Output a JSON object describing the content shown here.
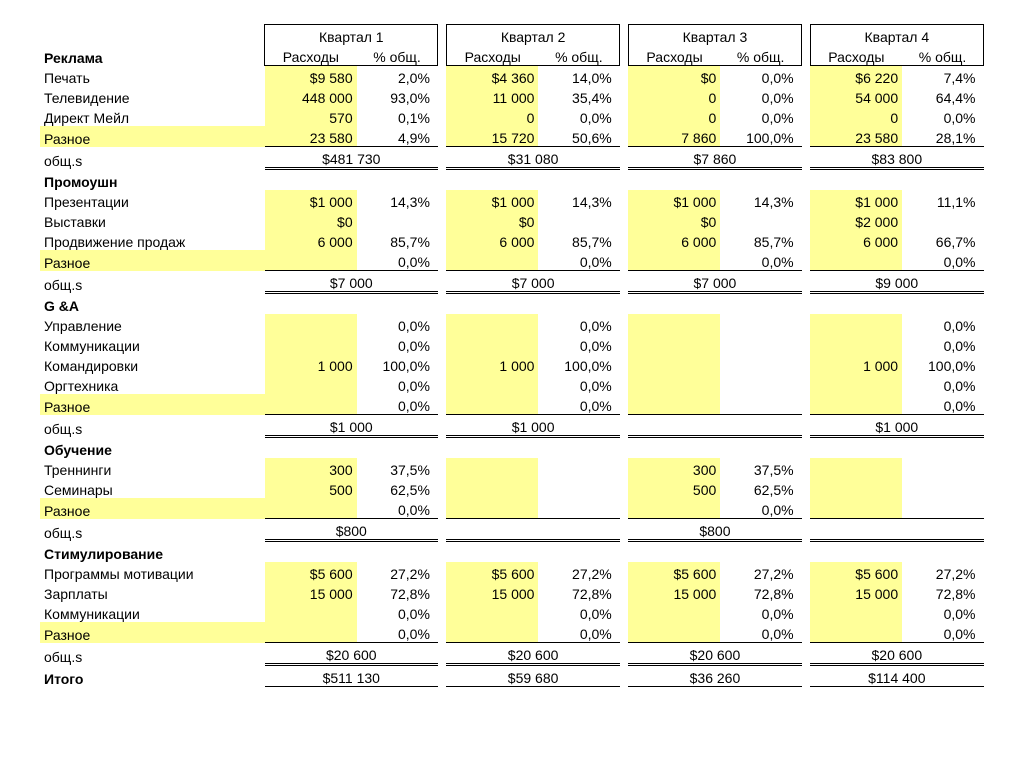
{
  "colors": {
    "highlight": "#ffff99",
    "text": "#000000",
    "bg": "#ffffff"
  },
  "header": {
    "quarters": [
      "Квартал 1",
      "Квартал 2",
      "Квартал 3",
      "Квартал 4"
    ],
    "sub_amt": "Расходы",
    "sub_pct": "% общ."
  },
  "labels": {
    "subtotal": "общ.s",
    "grandtotal": "Итого"
  },
  "sections": [
    {
      "title": "Реклама",
      "rows": [
        {
          "label": "Печать",
          "hl_label": false,
          "cells": [
            {
              "amt": "$9 580",
              "pct": "2,0%",
              "hl": true
            },
            {
              "amt": "$4 360",
              "pct": "14,0%",
              "hl": true
            },
            {
              "amt": "$0",
              "pct": "0,0%",
              "hl": true
            },
            {
              "amt": "$6 220",
              "pct": "7,4%",
              "hl": true
            }
          ]
        },
        {
          "label": "Телевидение",
          "hl_label": false,
          "cells": [
            {
              "amt": "448 000",
              "pct": "93,0%",
              "hl": true
            },
            {
              "amt": "11 000",
              "pct": "35,4%",
              "hl": true
            },
            {
              "amt": "0",
              "pct": "0,0%",
              "hl": true
            },
            {
              "amt": "54 000",
              "pct": "64,4%",
              "hl": true
            }
          ]
        },
        {
          "label": "Директ Мейл",
          "hl_label": false,
          "cells": [
            {
              "amt": "570",
              "pct": "0,1%",
              "hl": true
            },
            {
              "amt": "0",
              "pct": "0,0%",
              "hl": true
            },
            {
              "amt": "0",
              "pct": "0,0%",
              "hl": true
            },
            {
              "amt": "0",
              "pct": "0,0%",
              "hl": true
            }
          ]
        },
        {
          "label": "Разное",
          "hl_label": true,
          "cells": [
            {
              "amt": "23 580",
              "pct": "4,9%",
              "hl": true
            },
            {
              "amt": "15 720",
              "pct": "50,6%",
              "hl": true
            },
            {
              "amt": "7 860",
              "pct": "100,0%",
              "hl": true
            },
            {
              "amt": "23 580",
              "pct": "28,1%",
              "hl": true
            }
          ]
        }
      ],
      "subtotal": [
        "$481 730",
        "$31 080",
        "$7 860",
        "$83 800"
      ]
    },
    {
      "title": "Промоушн",
      "rows": [
        {
          "label": "Презентации",
          "hl_label": false,
          "cells": [
            {
              "amt": "$1 000",
              "pct": "14,3%",
              "hl": true
            },
            {
              "amt": "$1 000",
              "pct": "14,3%",
              "hl": true
            },
            {
              "amt": "$1 000",
              "pct": "14,3%",
              "hl": true
            },
            {
              "amt": "$1 000",
              "pct": "11,1%",
              "hl": true
            }
          ]
        },
        {
          "label": "Выставки",
          "hl_label": false,
          "cells": [
            {
              "amt": "$0",
              "pct": "",
              "hl": true
            },
            {
              "amt": "$0",
              "pct": "",
              "hl": true
            },
            {
              "amt": "$0",
              "pct": "",
              "hl": true
            },
            {
              "amt": "$2 000",
              "pct": "",
              "hl": true
            }
          ]
        },
        {
          "label": "Продвижение продаж",
          "hl_label": false,
          "cells": [
            {
              "amt": "6 000",
              "pct": "85,7%",
              "hl": true
            },
            {
              "amt": "6 000",
              "pct": "85,7%",
              "hl": true
            },
            {
              "amt": "6 000",
              "pct": "85,7%",
              "hl": true
            },
            {
              "amt": "6 000",
              "pct": "66,7%",
              "hl": true
            }
          ]
        },
        {
          "label": "Разное",
          "hl_label": true,
          "cells": [
            {
              "amt": "",
              "pct": "0,0%",
              "hl": true
            },
            {
              "amt": "",
              "pct": "0,0%",
              "hl": true
            },
            {
              "amt": "",
              "pct": "0,0%",
              "hl": true
            },
            {
              "amt": "",
              "pct": "0,0%",
              "hl": true
            }
          ]
        }
      ],
      "subtotal": [
        "$7 000",
        "$7 000",
        "$7 000",
        "$9 000"
      ]
    },
    {
      "title": "G &A",
      "rows": [
        {
          "label": "Управление",
          "hl_label": false,
          "cells": [
            {
              "amt": "",
              "pct": "0,0%",
              "hl": true
            },
            {
              "amt": "",
              "pct": "0,0%",
              "hl": true
            },
            {
              "amt": "",
              "pct": "",
              "hl": true
            },
            {
              "amt": "",
              "pct": "0,0%",
              "hl": true
            }
          ]
        },
        {
          "label": "Коммуникации",
          "hl_label": false,
          "cells": [
            {
              "amt": "",
              "pct": "0,0%",
              "hl": true
            },
            {
              "amt": "",
              "pct": "0,0%",
              "hl": true
            },
            {
              "amt": "",
              "pct": "",
              "hl": true
            },
            {
              "amt": "",
              "pct": "0,0%",
              "hl": true
            }
          ]
        },
        {
          "label": "Командировки",
          "hl_label": false,
          "cells": [
            {
              "amt": "1 000",
              "pct": "100,0%",
              "hl": true
            },
            {
              "amt": "1 000",
              "pct": "100,0%",
              "hl": true
            },
            {
              "amt": "",
              "pct": "",
              "hl": true
            },
            {
              "amt": "1 000",
              "pct": "100,0%",
              "hl": true
            }
          ]
        },
        {
          "label": "Оргтехника",
          "hl_label": false,
          "cells": [
            {
              "amt": "",
              "pct": "0,0%",
              "hl": true
            },
            {
              "amt": "",
              "pct": "0,0%",
              "hl": true
            },
            {
              "amt": "",
              "pct": "",
              "hl": true
            },
            {
              "amt": "",
              "pct": "0,0%",
              "hl": true
            }
          ]
        },
        {
          "label": "Разное",
          "hl_label": true,
          "cells": [
            {
              "amt": "",
              "pct": "0,0%",
              "hl": true
            },
            {
              "amt": "",
              "pct": "0,0%",
              "hl": true
            },
            {
              "amt": "",
              "pct": "",
              "hl": true
            },
            {
              "amt": "",
              "pct": "0,0%",
              "hl": true
            }
          ]
        }
      ],
      "subtotal": [
        "$1 000",
        "$1 000",
        "",
        "$1 000"
      ]
    },
    {
      "title": "Обучение",
      "rows": [
        {
          "label": "Треннинги",
          "hl_label": false,
          "cells": [
            {
              "amt": "300",
              "pct": "37,5%",
              "hl": true
            },
            {
              "amt": "",
              "pct": "",
              "hl": true
            },
            {
              "amt": "300",
              "pct": "37,5%",
              "hl": true
            },
            {
              "amt": "",
              "pct": "",
              "hl": true
            }
          ]
        },
        {
          "label": "Семинары",
          "hl_label": false,
          "cells": [
            {
              "amt": "500",
              "pct": "62,5%",
              "hl": true
            },
            {
              "amt": "",
              "pct": "",
              "hl": true
            },
            {
              "amt": "500",
              "pct": "62,5%",
              "hl": true
            },
            {
              "amt": "",
              "pct": "",
              "hl": true
            }
          ]
        },
        {
          "label": "Разное",
          "hl_label": true,
          "cells": [
            {
              "amt": "",
              "pct": "0,0%",
              "hl": true
            },
            {
              "amt": "",
              "pct": "",
              "hl": true
            },
            {
              "amt": "",
              "pct": "0,0%",
              "hl": true
            },
            {
              "amt": "",
              "pct": "",
              "hl": true
            }
          ]
        }
      ],
      "subtotal": [
        "$800",
        "",
        "$800",
        ""
      ]
    },
    {
      "title": "Стимулирование",
      "rows": [
        {
          "label": "Программы мотивации",
          "hl_label": false,
          "cells": [
            {
              "amt": "$5 600",
              "pct": "27,2%",
              "hl": true
            },
            {
              "amt": "$5 600",
              "pct": "27,2%",
              "hl": true
            },
            {
              "amt": "$5 600",
              "pct": "27,2%",
              "hl": true
            },
            {
              "amt": "$5 600",
              "pct": "27,2%",
              "hl": true
            }
          ]
        },
        {
          "label": "Зарплаты",
          "hl_label": false,
          "cells": [
            {
              "amt": "15 000",
              "pct": "72,8%",
              "hl": true
            },
            {
              "amt": "15 000",
              "pct": "72,8%",
              "hl": true
            },
            {
              "amt": "15 000",
              "pct": "72,8%",
              "hl": true
            },
            {
              "amt": "15 000",
              "pct": "72,8%",
              "hl": true
            }
          ]
        },
        {
          "label": "Коммуникации",
          "hl_label": false,
          "cells": [
            {
              "amt": "",
              "pct": "0,0%",
              "hl": true
            },
            {
              "amt": "",
              "pct": "0,0%",
              "hl": true
            },
            {
              "amt": "",
              "pct": "0,0%",
              "hl": true
            },
            {
              "amt": "",
              "pct": "0,0%",
              "hl": true
            }
          ]
        },
        {
          "label": "Разное",
          "hl_label": true,
          "cells": [
            {
              "amt": "",
              "pct": "0,0%",
              "hl": true
            },
            {
              "amt": "",
              "pct": "0,0%",
              "hl": true
            },
            {
              "amt": "",
              "pct": "0,0%",
              "hl": true
            },
            {
              "amt": "",
              "pct": "0,0%",
              "hl": true
            }
          ]
        }
      ],
      "subtotal": [
        "$20 600",
        "$20 600",
        "$20 600",
        "$20 600"
      ]
    }
  ],
  "grandtotal": [
    "$511 130",
    "$59 680",
    "$36 260",
    "$114 400"
  ]
}
